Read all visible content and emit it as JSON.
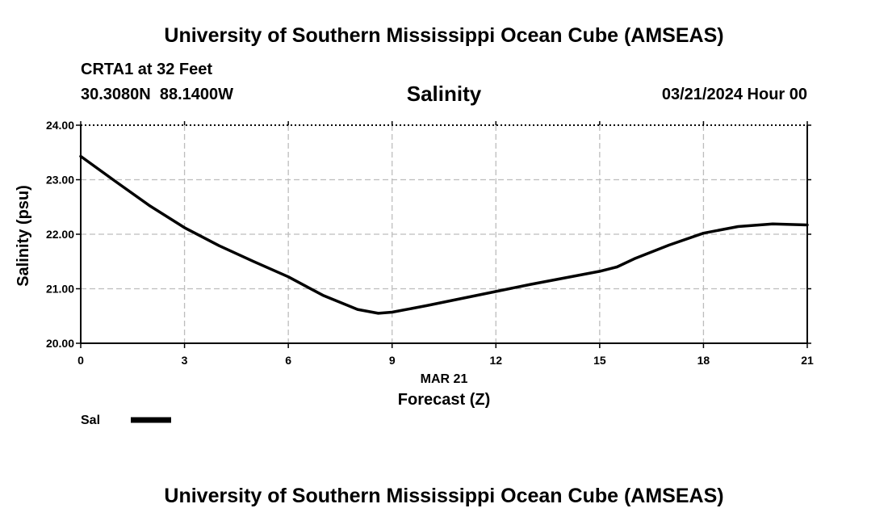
{
  "header": {
    "title": "University of Southern Mississippi Ocean Cube (AMSEAS)",
    "station": "CRTA1 at 32 Feet",
    "coords": "30.3080N  88.1400W",
    "plot_title": "Salinity",
    "datetime": "03/21/2024 Hour 00"
  },
  "footer": {
    "title": "University of Southern Mississippi Ocean Cube (AMSEAS)"
  },
  "chart_data": {
    "type": "line",
    "title": "Salinity",
    "xlabel": "Forecast (Z)",
    "xdate_label": "MAR 21",
    "ylabel": "Salinity (psu)",
    "xlim": [
      0,
      21
    ],
    "ylim": [
      20,
      24
    ],
    "x_ticks": [
      0,
      3,
      6,
      9,
      12,
      15,
      18,
      21
    ],
    "y_ticks": [
      "20.00",
      "21.00",
      "22.00",
      "23.00",
      "24.00"
    ],
    "grid": true,
    "legend_position": "bottom-left",
    "series": [
      {
        "name": "Sal",
        "color": "#000000",
        "x": [
          0,
          1,
          2,
          3,
          4,
          5,
          6,
          7,
          8,
          8.6,
          9,
          10,
          11,
          12,
          13,
          14,
          15,
          15.5,
          16,
          17,
          18,
          19,
          20,
          21
        ],
        "y": [
          23.43,
          22.97,
          22.52,
          22.12,
          21.79,
          21.5,
          21.22,
          20.88,
          20.62,
          20.55,
          20.57,
          20.69,
          20.82,
          20.95,
          21.08,
          21.2,
          21.32,
          21.4,
          21.55,
          21.8,
          22.02,
          22.14,
          22.19,
          22.17
        ]
      }
    ]
  }
}
